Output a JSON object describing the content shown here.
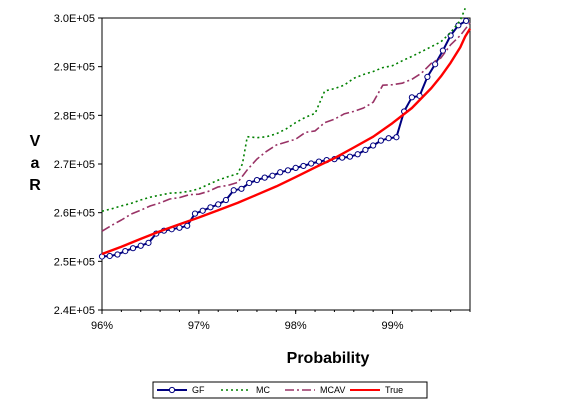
{
  "chart_data": {
    "type": "line",
    "xlabel": "Probability",
    "ylabel": "VaR",
    "ylabel_chars": [
      "V",
      "a",
      "R"
    ],
    "xlim": [
      0.96,
      0.998
    ],
    "ylim": [
      240000,
      300000
    ],
    "x_ticks": [
      0.96,
      0.97,
      0.98,
      0.99
    ],
    "x_tick_labels": [
      "96%",
      "97%",
      "98%",
      "99%"
    ],
    "y_ticks": [
      240000,
      250000,
      260000,
      270000,
      280000,
      290000,
      300000
    ],
    "y_tick_labels": [
      "2.4E+05",
      "2.5E+05",
      "2.6E+05",
      "2.7E+05",
      "2.8E+05",
      "2.9E+05",
      "3.0E+05"
    ],
    "grid": false,
    "legend_position": "bottom",
    "series": [
      {
        "name": "GF",
        "color": "#000080",
        "style": "solid-markers",
        "x": [
          0.96,
          0.9608,
          0.9616,
          0.9624,
          0.9632,
          0.964,
          0.9648,
          0.9656,
          0.9664,
          0.9672,
          0.968,
          0.9688,
          0.9696,
          0.9704,
          0.9712,
          0.972,
          0.9728,
          0.9736,
          0.9744,
          0.9752,
          0.976,
          0.9768,
          0.9776,
          0.9784,
          0.9792,
          0.98,
          0.9808,
          0.9816,
          0.9824,
          0.9832,
          0.984,
          0.9848,
          0.9856,
          0.9864,
          0.9872,
          0.988,
          0.9888,
          0.9896,
          0.9904,
          0.9912,
          0.992,
          0.9928,
          0.9936,
          0.9944,
          0.9952,
          0.996,
          0.9968,
          0.9976
        ],
        "values": [
          251000,
          251100,
          251400,
          252100,
          252700,
          253200,
          253800,
          255700,
          256300,
          256600,
          256900,
          257300,
          259800,
          260400,
          261100,
          261700,
          262600,
          264600,
          264900,
          266100,
          266700,
          267200,
          267600,
          268300,
          268700,
          269200,
          269600,
          270100,
          270500,
          270800,
          271000,
          271300,
          271500,
          272000,
          272900,
          273800,
          274800,
          275300,
          275500,
          280800,
          283700,
          284000,
          287900,
          290500,
          293300,
          296400,
          298500,
          299400
        ]
      },
      {
        "name": "MC",
        "color": "#008000",
        "style": "dotted",
        "x": [
          0.96,
          0.961,
          0.962,
          0.963,
          0.964,
          0.965,
          0.966,
          0.967,
          0.968,
          0.969,
          0.97,
          0.971,
          0.972,
          0.973,
          0.974,
          0.9745,
          0.975,
          0.976,
          0.977,
          0.978,
          0.979,
          0.98,
          0.981,
          0.982,
          0.983,
          0.984,
          0.985,
          0.986,
          0.987,
          0.988,
          0.989,
          0.99,
          0.991,
          0.992,
          0.993,
          0.994,
          0.995,
          0.996,
          0.997,
          0.9975
        ],
        "values": [
          260300,
          260800,
          261400,
          261900,
          262600,
          263200,
          263600,
          264000,
          264100,
          264400,
          264900,
          265800,
          266700,
          267400,
          268000,
          270000,
          275600,
          275400,
          275600,
          276200,
          277200,
          278500,
          279600,
          280400,
          285000,
          285500,
          286200,
          287600,
          288400,
          289000,
          289800,
          290200,
          291200,
          292100,
          293100,
          294100,
          295100,
          297000,
          299500,
          302000
        ]
      },
      {
        "name": "MCAV",
        "color": "#993366",
        "style": "dash-dot",
        "x": [
          0.96,
          0.961,
          0.962,
          0.963,
          0.964,
          0.965,
          0.966,
          0.967,
          0.968,
          0.969,
          0.97,
          0.971,
          0.972,
          0.973,
          0.974,
          0.975,
          0.976,
          0.977,
          0.978,
          0.979,
          0.98,
          0.981,
          0.982,
          0.983,
          0.984,
          0.985,
          0.986,
          0.987,
          0.988,
          0.989,
          0.99,
          0.991,
          0.992,
          0.993,
          0.994,
          0.995,
          0.996,
          0.997,
          0.998
        ],
        "values": [
          256200,
          257400,
          258500,
          259700,
          260500,
          261400,
          262000,
          262800,
          263100,
          263700,
          263800,
          264400,
          265300,
          265600,
          266200,
          268800,
          271000,
          272600,
          273900,
          274500,
          275100,
          276500,
          276800,
          278500,
          279200,
          280300,
          280800,
          281500,
          282700,
          286200,
          286300,
          286600,
          287400,
          288700,
          290700,
          291800,
          294500,
          296400,
          299000
        ]
      },
      {
        "name": "True",
        "color": "#ff0000",
        "style": "solid-thick",
        "x": [
          0.96,
          0.962,
          0.964,
          0.966,
          0.968,
          0.97,
          0.972,
          0.974,
          0.976,
          0.978,
          0.98,
          0.982,
          0.984,
          0.986,
          0.988,
          0.99,
          0.992,
          0.994,
          0.995,
          0.996,
          0.997,
          0.9975,
          0.998
        ],
        "values": [
          251500,
          253000,
          254600,
          256200,
          257600,
          259000,
          260500,
          262000,
          263700,
          265400,
          267300,
          269300,
          271200,
          273400,
          275600,
          278400,
          281500,
          285600,
          288000,
          290800,
          294000,
          296200,
          297800
        ]
      }
    ]
  }
}
